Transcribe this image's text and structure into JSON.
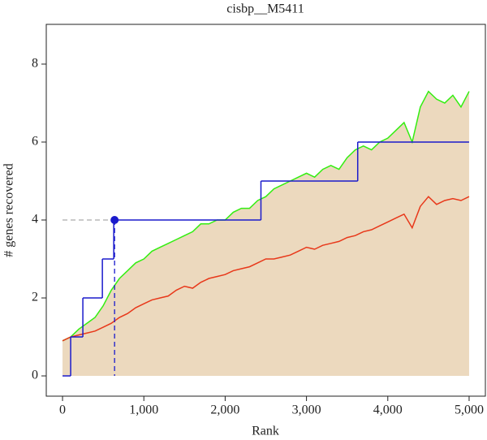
{
  "chart_data": {
    "type": "line",
    "title": "cisbp__M5411",
    "x_label": "Rank",
    "y_label": "# genes recovered",
    "xlim": [
      -200,
      5200
    ],
    "ylim": [
      -0.52,
      9.02
    ],
    "xticks": [
      0,
      {
        "value": 1000,
        "label": "1,000"
      },
      {
        "value": 2000,
        "label": "2,000"
      },
      {
        "value": 3000,
        "label": "3,000"
      },
      {
        "value": 4000,
        "label": "4,000"
      },
      {
        "value": 5000,
        "label": "5,000"
      }
    ],
    "yticks": [
      0,
      2,
      4,
      6,
      8
    ],
    "x": [
      0,
      100,
      200,
      300,
      400,
      500,
      600,
      700,
      800,
      900,
      1000,
      1100,
      1200,
      1300,
      1400,
      1500,
      1600,
      1700,
      1800,
      1900,
      2000,
      2100,
      2200,
      2300,
      2400,
      2500,
      2600,
      2700,
      2800,
      2900,
      3000,
      3100,
      3200,
      3300,
      3400,
      3500,
      3600,
      3700,
      3800,
      3900,
      4000,
      4100,
      4200,
      4300,
      4400,
      4500,
      4600,
      4700,
      4800,
      4900,
      5000
    ],
    "series": [
      {
        "color": "#33ee11",
        "fill": "#ecd9be",
        "values": [
          0.9,
          1.0,
          1.2,
          1.35,
          1.5,
          1.8,
          2.2,
          2.5,
          2.7,
          2.9,
          3.0,
          3.2,
          3.3,
          3.4,
          3.5,
          3.6,
          3.7,
          3.9,
          3.9,
          4.0,
          4.0,
          4.2,
          4.3,
          4.3,
          4.5,
          4.6,
          4.8,
          4.9,
          5.0,
          5.1,
          5.2,
          5.1,
          5.3,
          5.4,
          5.3,
          5.6,
          5.8,
          5.9,
          5.8,
          6.0,
          6.1,
          6.3,
          6.5,
          6.0,
          6.9,
          7.3,
          7.1,
          7.0,
          7.2,
          6.9,
          7.3
        ]
      },
      {
        "color": "#e8381a",
        "values": [
          0.9,
          1.0,
          1.05,
          1.1,
          1.15,
          1.25,
          1.35,
          1.5,
          1.6,
          1.75,
          1.85,
          1.95,
          2.0,
          2.05,
          2.2,
          2.3,
          2.25,
          2.4,
          2.5,
          2.55,
          2.6,
          2.7,
          2.75,
          2.8,
          2.9,
          3.0,
          3.0,
          3.05,
          3.1,
          3.2,
          3.3,
          3.25,
          3.35,
          3.4,
          3.45,
          3.55,
          3.6,
          3.7,
          3.75,
          3.85,
          3.95,
          4.05,
          4.15,
          3.8,
          4.35,
          4.6,
          4.4,
          4.5,
          4.55,
          4.5,
          4.6
        ]
      },
      {
        "color": "#1a1acc",
        "step": "post",
        "x": [
          0,
          100,
          250,
          490,
          630,
          2440,
          3630,
          5000
        ],
        "values": [
          0,
          1,
          2,
          3,
          4,
          5,
          6,
          6
        ]
      }
    ],
    "threshold": {
      "x": 640,
      "y": 4,
      "color": "#1a1acc"
    }
  }
}
